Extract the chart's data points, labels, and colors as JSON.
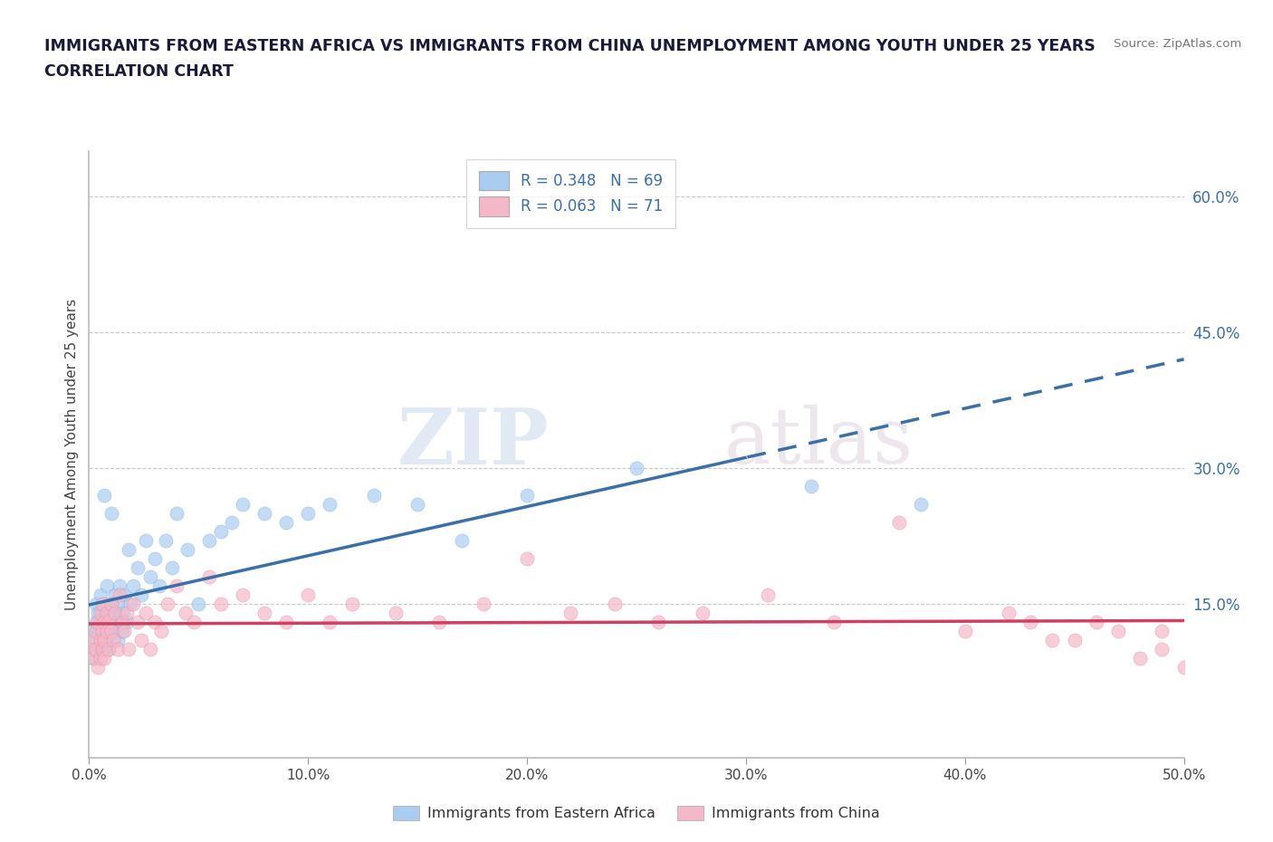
{
  "title_line1": "IMMIGRANTS FROM EASTERN AFRICA VS IMMIGRANTS FROM CHINA UNEMPLOYMENT AMONG YOUTH UNDER 25 YEARS",
  "title_line2": "CORRELATION CHART",
  "source": "Source: ZipAtlas.com",
  "ylabel": "Unemployment Among Youth under 25 years",
  "xlim": [
    0.0,
    0.5
  ],
  "ylim": [
    -0.02,
    0.65
  ],
  "xticks": [
    0.0,
    0.1,
    0.2,
    0.3,
    0.4,
    0.5
  ],
  "xtick_labels": [
    "0.0%",
    "10.0%",
    "20.0%",
    "30.0%",
    "40.0%",
    "50.0%"
  ],
  "yticks_right": [
    0.15,
    0.3,
    0.45,
    0.6
  ],
  "ytick_labels_right": [
    "15.0%",
    "30.0%",
    "45.0%",
    "60.0%"
  ],
  "series1_name": "Immigrants from Eastern Africa",
  "series1_R": "0.348",
  "series1_N": "69",
  "series1_color": "#aaccf0",
  "series1_edge_color": "#7baad4",
  "series1_trend_color": "#3a6fa8",
  "series2_name": "Immigrants from China",
  "series2_R": "0.063",
  "series2_N": "71",
  "series2_color": "#f5b8c8",
  "series2_edge_color": "#e080a0",
  "series2_trend_color": "#d04060",
  "legend_R_color": "#3a6fa8",
  "watermark_zip": "ZIP",
  "watermark_atlas": "atlas",
  "bg_color": "#ffffff",
  "grid_color": "#c8c8c8",
  "title_color": "#1a1a3a",
  "trend_dash_start": 0.3,
  "series1_x": [
    0.001,
    0.002,
    0.002,
    0.003,
    0.003,
    0.003,
    0.004,
    0.004,
    0.004,
    0.005,
    0.005,
    0.005,
    0.006,
    0.006,
    0.006,
    0.006,
    0.007,
    0.007,
    0.007,
    0.007,
    0.008,
    0.008,
    0.008,
    0.009,
    0.009,
    0.009,
    0.01,
    0.01,
    0.01,
    0.011,
    0.011,
    0.012,
    0.012,
    0.013,
    0.013,
    0.014,
    0.015,
    0.015,
    0.016,
    0.017,
    0.018,
    0.019,
    0.02,
    0.022,
    0.024,
    0.026,
    0.028,
    0.03,
    0.032,
    0.035,
    0.038,
    0.04,
    0.045,
    0.05,
    0.055,
    0.06,
    0.065,
    0.07,
    0.08,
    0.09,
    0.1,
    0.11,
    0.13,
    0.15,
    0.17,
    0.2,
    0.25,
    0.33,
    0.38
  ],
  "series1_y": [
    0.1,
    0.12,
    0.09,
    0.13,
    0.11,
    0.15,
    0.12,
    0.1,
    0.14,
    0.13,
    0.11,
    0.16,
    0.12,
    0.14,
    0.1,
    0.13,
    0.12,
    0.15,
    0.11,
    0.27,
    0.13,
    0.11,
    0.17,
    0.14,
    0.12,
    0.1,
    0.15,
    0.13,
    0.25,
    0.14,
    0.12,
    0.16,
    0.13,
    0.15,
    0.11,
    0.17,
    0.14,
    0.12,
    0.16,
    0.13,
    0.21,
    0.15,
    0.17,
    0.19,
    0.16,
    0.22,
    0.18,
    0.2,
    0.17,
    0.22,
    0.19,
    0.25,
    0.21,
    0.15,
    0.22,
    0.23,
    0.24,
    0.26,
    0.25,
    0.24,
    0.25,
    0.26,
    0.27,
    0.26,
    0.22,
    0.27,
    0.3,
    0.28,
    0.26
  ],
  "series2_x": [
    0.001,
    0.002,
    0.002,
    0.003,
    0.003,
    0.004,
    0.004,
    0.005,
    0.005,
    0.005,
    0.006,
    0.006,
    0.006,
    0.007,
    0.007,
    0.007,
    0.008,
    0.008,
    0.009,
    0.009,
    0.01,
    0.01,
    0.011,
    0.012,
    0.013,
    0.014,
    0.015,
    0.016,
    0.017,
    0.018,
    0.02,
    0.022,
    0.024,
    0.026,
    0.028,
    0.03,
    0.033,
    0.036,
    0.04,
    0.044,
    0.048,
    0.055,
    0.06,
    0.07,
    0.08,
    0.09,
    0.1,
    0.11,
    0.12,
    0.14,
    0.16,
    0.18,
    0.2,
    0.22,
    0.24,
    0.26,
    0.28,
    0.31,
    0.34,
    0.37,
    0.4,
    0.42,
    0.44,
    0.46,
    0.48,
    0.49,
    0.5,
    0.49,
    0.47,
    0.45,
    0.43
  ],
  "series2_y": [
    0.1,
    0.11,
    0.09,
    0.12,
    0.1,
    0.13,
    0.08,
    0.11,
    0.14,
    0.09,
    0.12,
    0.1,
    0.15,
    0.11,
    0.13,
    0.09,
    0.12,
    0.14,
    0.1,
    0.13,
    0.12,
    0.15,
    0.11,
    0.14,
    0.1,
    0.16,
    0.13,
    0.12,
    0.14,
    0.1,
    0.15,
    0.13,
    0.11,
    0.14,
    0.1,
    0.13,
    0.12,
    0.15,
    0.17,
    0.14,
    0.13,
    0.18,
    0.15,
    0.16,
    0.14,
    0.13,
    0.16,
    0.13,
    0.15,
    0.14,
    0.13,
    0.15,
    0.2,
    0.14,
    0.15,
    0.13,
    0.14,
    0.16,
    0.13,
    0.24,
    0.12,
    0.14,
    0.11,
    0.13,
    0.09,
    0.12,
    0.08,
    0.1,
    0.12,
    0.11,
    0.13
  ]
}
